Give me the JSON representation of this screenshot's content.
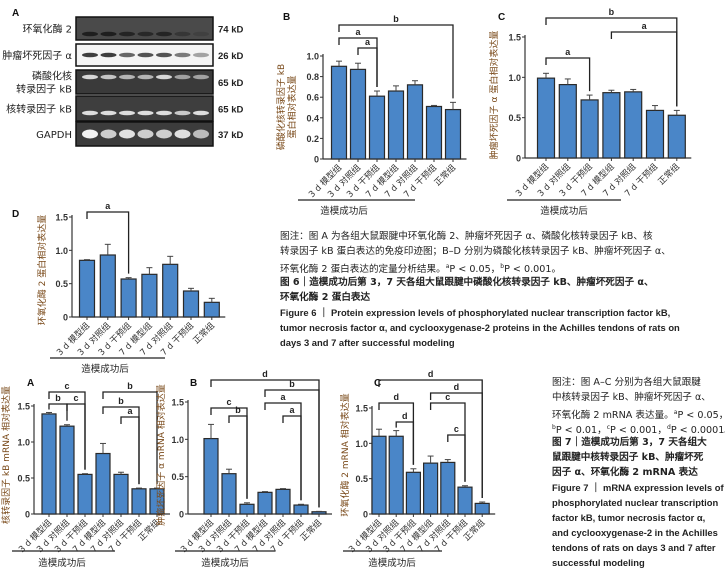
{
  "figure6": {
    "panel_a": {
      "letter": "A",
      "rows": [
        {
          "label": "环氧化酶 2",
          "size": "74 kD"
        },
        {
          "label": "肿瘤坏死因子 α",
          "size": "26 kD"
        },
        {
          "label": [
            "磷酸化核",
            "转录因子 kB"
          ],
          "size": "65 kD"
        },
        {
          "label": "核转录因子 kB",
          "size": "65 kD"
        },
        {
          "label": "GAPDH",
          "size": "37 kD"
        }
      ]
    },
    "caption_lines": [
      [
        {
          "t": "图注：图 A 为各组大鼠跟腱中环氧化酶 2、肿瘤坏死因子 α、磷酸化核转录因子 kB、核"
        }
      ],
      [
        {
          "t": "转录因子 kB 蛋白表达的免疫印迹图；B–D 分别为磷酸化核转录因子 kB、肿瘤坏死因子 α、"
        }
      ],
      [
        {
          "t": "环氧化酶 2 蛋白表达的定量分析结果。"
        },
        {
          "t": "a",
          "sup": true
        },
        {
          "t": "P < 0.05，"
        },
        {
          "t": "b",
          "sup": true
        },
        {
          "t": "P < 0.001。"
        }
      ],
      [
        {
          "t": "图 6｜造模成功后第 3，7 天各组大鼠跟腱中磷酸化核转录因子 kB、肿瘤坏死因子 α、",
          "fig": true
        }
      ],
      [
        {
          "t": "环氧化酶 2 蛋白表达",
          "fig": true
        }
      ],
      [
        {
          "t": "Figure 6 ｜ Protein expression levels of phosphorylated nuclear transcription factor kB,",
          "en": true
        }
      ],
      [
        {
          "t": "tumor necrosis factor α, and cyclooxygenase-2 proteins in the Achilles tendons of rats on",
          "en": true
        }
      ],
      [
        {
          "t": "days 3 and 7 after successful modeling",
          "en": true
        }
      ]
    ]
  },
  "figure7": {
    "caption_lines": [
      [
        {
          "t": "图注：图 A–C 分别为各组大鼠跟腱"
        }
      ],
      [
        {
          "t": "中核转录因子 kB、肿瘤坏死因子 α、"
        }
      ],
      [
        {
          "t": "环氧化酶 2 mRNA 表达量。"
        },
        {
          "t": "a",
          "sup": true
        },
        {
          "t": "P < 0.05，"
        }
      ],
      [
        {
          "t": "b",
          "sup": true
        },
        {
          "t": "P < 0.01，"
        },
        {
          "t": "c",
          "sup": true
        },
        {
          "t": "P < 0.001，"
        },
        {
          "t": "d",
          "sup": true
        },
        {
          "t": "P < 0.0001。"
        }
      ],
      [
        {
          "t": "图 7｜造模成功后第 3，7 天各组大",
          "fig": true
        }
      ],
      [
        {
          "t": "鼠跟腱中核转录因子 kB、肿瘤坏死",
          "fig": true
        }
      ],
      [
        {
          "t": "因子 α、环氧化酶 2 mRNA 表达",
          "fig": true
        }
      ],
      [
        {
          "t": "Figure 7 ｜ mRNA expression levels of",
          "en": true
        }
      ],
      [
        {
          "t": "phosphorylated nuclear transcription",
          "en": true
        }
      ],
      [
        {
          "t": "factor kB, tumor necrosis factor α,",
          "en": true
        }
      ],
      [
        {
          "t": "and cyclooxygenase-2 in the Achilles",
          "en": true
        }
      ],
      [
        {
          "t": "tendons of rats on days 3 and 7 after",
          "en": true
        }
      ],
      [
        {
          "t": "successful modeling",
          "en": true
        }
      ]
    ]
  },
  "colors": {
    "bar": "#4a86c8",
    "bar_stroke": "#2a2a2a",
    "axis": "#333333",
    "ylabel": "#7a4a1a"
  },
  "chart_data": [
    {
      "id": "fig6B",
      "letter": "B",
      "type": "bar",
      "ylabel": [
        "磷酸化核转录因子 kB",
        "蛋白相对表达量"
      ],
      "xlabel": "造模成功后",
      "categories": [
        "3 d 模型组",
        "3 d 对照组",
        "3 d 干预组",
        "7 d 模型组",
        "7 d 对照组",
        "7 d 干预组",
        "正常组"
      ],
      "values": [
        0.9,
        0.87,
        0.61,
        0.66,
        0.72,
        0.51,
        0.48
      ],
      "errors": [
        0.05,
        0.06,
        0.05,
        0.05,
        0.04,
        0.01,
        0.07
      ],
      "ylim": [
        0,
        1.0
      ],
      "yticks": [
        0,
        0.2,
        0.4,
        0.6,
        0.8,
        1.0
      ],
      "ytick_labels": [
        "0",
        "0.2",
        "0.4",
        "0.6",
        "0.8",
        "1.0"
      ],
      "brackets": [
        {
          "from": 0,
          "to": 6,
          "label": "b"
        },
        {
          "from": 0,
          "to": 2,
          "label": "a"
        },
        {
          "from": 1,
          "to": 2,
          "label": "a"
        }
      ]
    },
    {
      "id": "fig6C",
      "letter": "C",
      "type": "bar",
      "ylabel": [
        "肿瘤坏死因子 α 蛋白相对表达量"
      ],
      "xlabel": "造模成功后",
      "categories": [
        "3 d 模型组",
        "3 d 对照组",
        "3 d 干预组",
        "7 d 模型组",
        "7 d 对照组",
        "7 d 干预组",
        "正常组"
      ],
      "values": [
        0.99,
        0.91,
        0.72,
        0.81,
        0.82,
        0.59,
        0.53
      ],
      "errors": [
        0.06,
        0.07,
        0.06,
        0.03,
        0.03,
        0.06,
        0.06
      ],
      "ylim": [
        0,
        1.5
      ],
      "yticks": [
        0,
        0.5,
        1.0,
        1.5
      ],
      "ytick_labels": [
        "0",
        "0.5",
        "1.0",
        "1.5"
      ],
      "brackets": [
        {
          "from": 0,
          "to": 6,
          "label": "b"
        },
        {
          "from": 3,
          "to": 6,
          "label": "a"
        },
        {
          "from": 0,
          "to": 2,
          "label": "a"
        }
      ]
    },
    {
      "id": "fig6D",
      "letter": "D",
      "type": "bar",
      "ylabel": [
        "环氧化酶 2 蛋白相对表达量"
      ],
      "xlabel": "造模成功后",
      "categories": [
        "3 d 模型组",
        "3 d 对照组",
        "3 d 干预组",
        "7 d 模型组",
        "7 d 对照组",
        "7 d 干预组",
        "正常组"
      ],
      "values": [
        0.85,
        0.93,
        0.57,
        0.64,
        0.79,
        0.39,
        0.22
      ],
      "errors": [
        0.01,
        0.16,
        0.02,
        0.1,
        0.12,
        0.04,
        0.06
      ],
      "ylim": [
        0,
        1.5
      ],
      "yticks": [
        0,
        0.5,
        1.0,
        1.5
      ],
      "ytick_labels": [
        "0",
        "0.5",
        "1.0",
        "1.5"
      ],
      "brackets": [
        {
          "from": 0,
          "to": 2,
          "label": "a"
        }
      ]
    },
    {
      "id": "fig7A",
      "letter": "A",
      "type": "bar",
      "ylabel": [
        "核转录因子 kB mRNA 相对表达量"
      ],
      "xlabel": "造模成功后",
      "categories": [
        "3 d 模型组",
        "3 d 对照组",
        "3 d 干预组",
        "7 d 模型组",
        "7 d 对照组",
        "7 d 干预组",
        "正常组"
      ],
      "values": [
        1.39,
        1.22,
        0.55,
        0.84,
        0.55,
        0.35,
        0.35
      ],
      "errors": [
        0.02,
        0.02,
        0.01,
        0.14,
        0.03,
        0.01,
        0.01
      ],
      "ylim": [
        0,
        1.5
      ],
      "yticks": [
        0,
        0.5,
        1.0,
        1.5
      ],
      "ytick_labels": [
        "0",
        "0.5",
        "1.0",
        "1.5"
      ],
      "brackets": [
        {
          "from": 0,
          "to": 2,
          "label": "c"
        },
        {
          "from": 0,
          "to": 1,
          "label": "b"
        },
        {
          "from": 1,
          "to": 2,
          "label": "c"
        },
        {
          "from": 3,
          "to": 6,
          "label": "b"
        },
        {
          "from": 3,
          "to": 5,
          "label": "b"
        },
        {
          "from": 4,
          "to": 5,
          "label": "a"
        }
      ]
    },
    {
      "id": "fig7B",
      "letter": "B",
      "type": "bar",
      "ylabel": [
        "肿瘤坏死因子 α mRNA 相对表达量"
      ],
      "xlabel": "造模成功后",
      "categories": [
        "3 d 模型组",
        "3 d 对照组",
        "3 d 干预组",
        "7 d 模型组",
        "7 d 对照组",
        "7 d 干预组",
        "正常组"
      ],
      "values": [
        1.01,
        0.54,
        0.13,
        0.29,
        0.33,
        0.12,
        0.03
      ],
      "errors": [
        0.19,
        0.06,
        0.02,
        0.01,
        0.01,
        0.01,
        0.005
      ],
      "ylim": [
        0,
        1.5
      ],
      "yticks": [
        0,
        0.5,
        1.0,
        1.5
      ],
      "ytick_labels": [
        "0",
        "0.5",
        "1.0",
        "1.5"
      ],
      "brackets": [
        {
          "from": 0,
          "to": 6,
          "label": "d"
        },
        {
          "from": 3,
          "to": 6,
          "label": "b"
        },
        {
          "from": 0,
          "to": 2,
          "label": "c"
        },
        {
          "from": 3,
          "to": 5,
          "label": "a"
        },
        {
          "from": 1,
          "to": 2,
          "label": "b"
        },
        {
          "from": 4,
          "to": 5,
          "label": "a"
        }
      ]
    },
    {
      "id": "fig7C",
      "letter": "C",
      "type": "bar",
      "ylabel": [
        "环氧化酶 2 mRNA 相对表达量"
      ],
      "xlabel": "造模成功后",
      "categories": [
        "3 d 模型组",
        "3 d 对照组",
        "3 d 干预组",
        "7 d 模型组",
        "7 d 对照组",
        "7 d 干预组",
        "正常组"
      ],
      "values": [
        1.1,
        1.1,
        0.59,
        0.72,
        0.73,
        0.38,
        0.15
      ],
      "errors": [
        0.1,
        0.08,
        0.05,
        0.1,
        0.04,
        0.02,
        0.02
      ],
      "ylim": [
        0,
        1.5
      ],
      "yticks": [
        0,
        0.5,
        1.0,
        1.5
      ],
      "ytick_labels": [
        "0",
        "0.5",
        "1.0",
        "1.5"
      ],
      "brackets": [
        {
          "from": 0,
          "to": 6,
          "label": "d"
        },
        {
          "from": 3,
          "to": 6,
          "label": "d"
        },
        {
          "from": 0,
          "to": 2,
          "label": "d"
        },
        {
          "from": 3,
          "to": 5,
          "label": "c"
        },
        {
          "from": 1,
          "to": 2,
          "label": "d"
        },
        {
          "from": 4,
          "to": 5,
          "label": "c"
        }
      ]
    }
  ]
}
